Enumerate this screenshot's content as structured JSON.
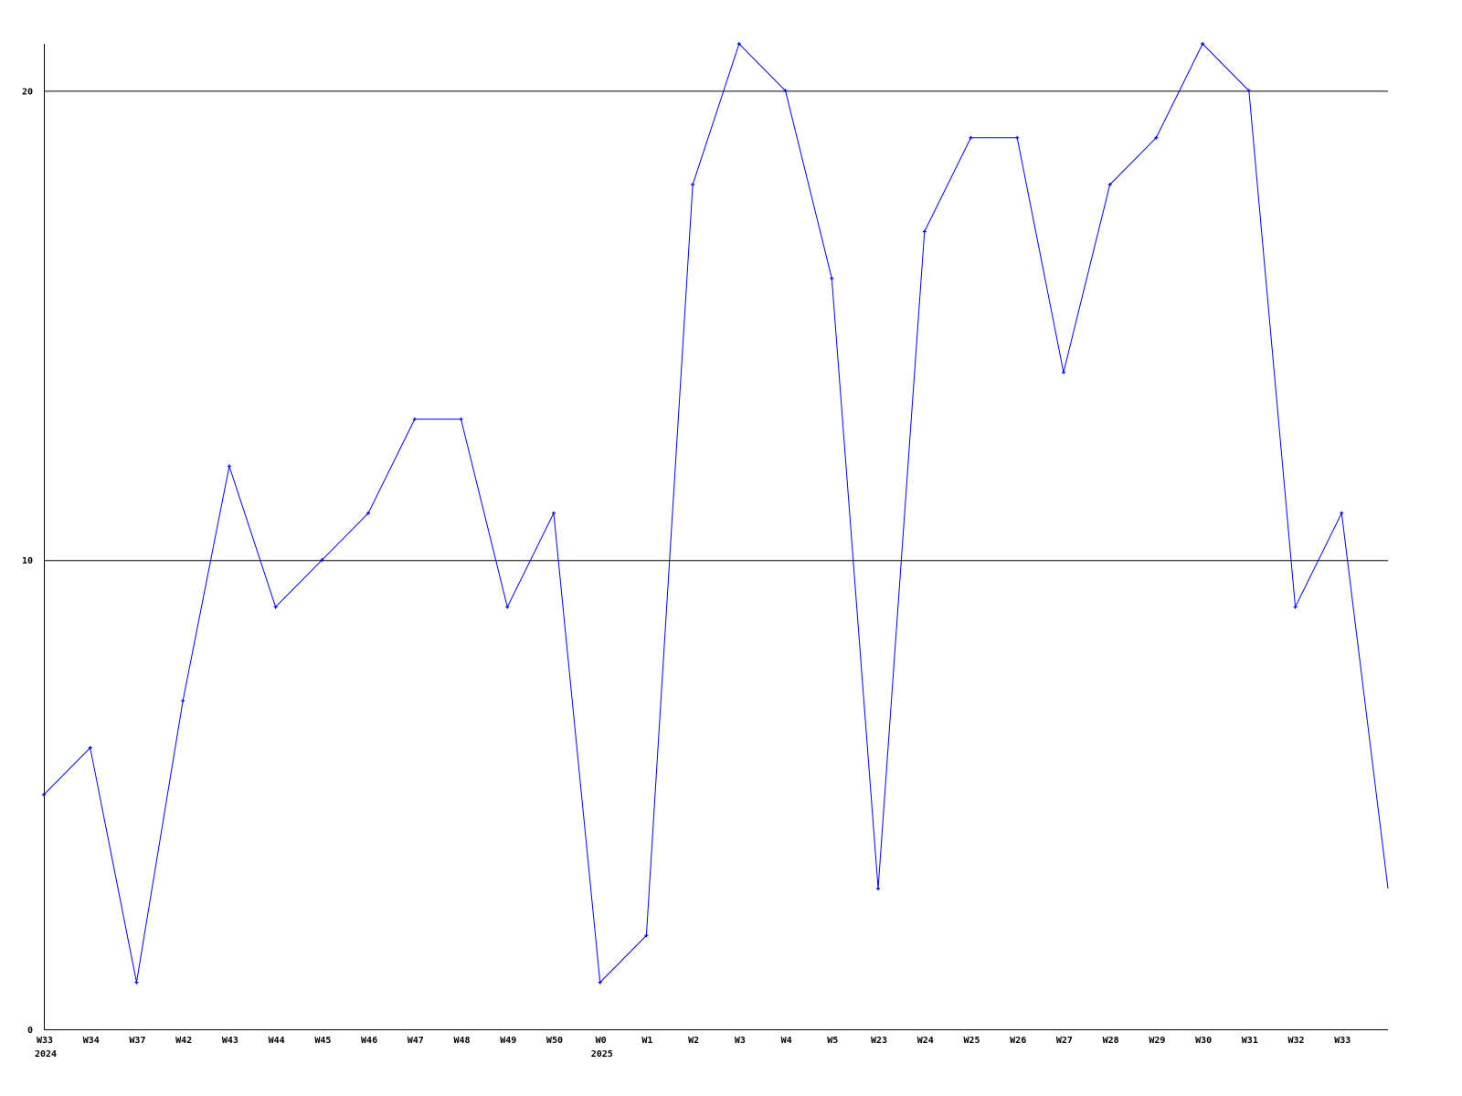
{
  "chart_data": {
    "type": "line",
    "title": "",
    "xlabel": "",
    "ylabel": "",
    "categories": [
      "W33",
      "W34",
      "W37",
      "W42",
      "W43",
      "W44",
      "W45",
      "W46",
      "W47",
      "W48",
      "W49",
      "W50",
      "W0",
      "W1",
      "W2",
      "W3",
      "W4",
      "W5",
      "W23",
      "W24",
      "W25",
      "W26",
      "W27",
      "W28",
      "W29",
      "W30",
      "W31",
      "W32",
      "W33",
      ""
    ],
    "year_labels": [
      {
        "index": 0,
        "label": "2024"
      },
      {
        "index": 12,
        "label": "2025"
      }
    ],
    "values": [
      5,
      6,
      1,
      7,
      12,
      9,
      10,
      11,
      13,
      13,
      9,
      11,
      1,
      2,
      18,
      21,
      20,
      16,
      3,
      17,
      19,
      19,
      14,
      18,
      19,
      21,
      20,
      9,
      11,
      3
    ],
    "markers_shown_for_last_point": false,
    "ylim": [
      0,
      21
    ],
    "yticks": [
      0,
      10,
      20
    ],
    "grid": "horizontal lines at y ticks",
    "legend": "none",
    "colors": {
      "line": "#0000ff",
      "axis": "#000000"
    }
  }
}
